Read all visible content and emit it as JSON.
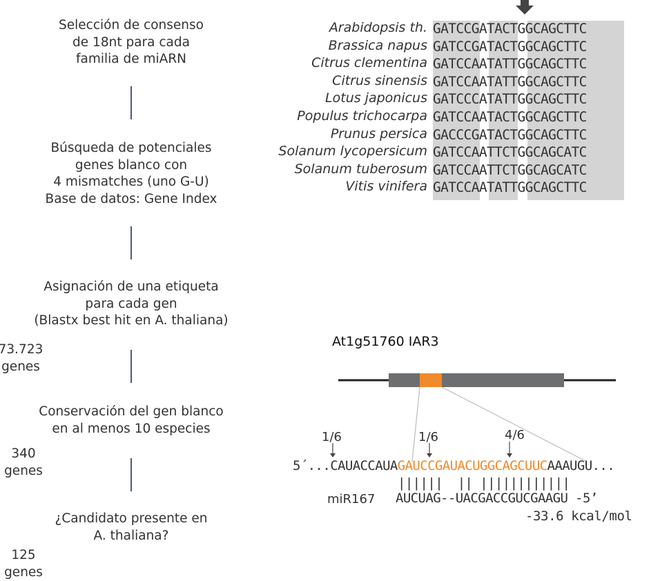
{
  "flow_steps": [
    "Selección de consenso\nde 18nt para cada\nfamilia de miARN",
    "Búsqueda de potenciales\ngenes blanco con\n4 mismatches (uno G-U)\nBase de datos: Gene Index",
    "Asignación de una etiqueta\npara cada gen\n(Blastx best hit en A. thaliana)",
    "Conservación del gen blanco\nen al menos 10 especies",
    "¿Candidato presente en\nA. thaliana?"
  ],
  "counts": [
    {
      "value": "73.723",
      "unit": "genes"
    },
    {
      "value": "340",
      "unit": "genes"
    },
    {
      "value": "125",
      "unit": "genes"
    }
  ],
  "alignment": {
    "species": [
      "Arabidopsis th.",
      "Brassica napus",
      "Citrus clementina",
      "Citrus sinensis",
      "Lotus japonicus",
      "Populus trichocarpa",
      "Prunus persica",
      "Solanum lycopersicum",
      "Solanum tuberosum",
      "Vitis vinifera"
    ],
    "sequences": [
      "GATCCGATACTGGCAGCTTC",
      "GATCCGATACTGGCAGCTTC",
      "GATCCAATATTGGCAGCTTC",
      "GATCCAATATTGGCAGCTTC",
      "GATCCCATATTGGCAGCTTC",
      "GATCCAATACTGGCAGCTTC",
      "GACCCGATACTGGCAGCTTC",
      "GATCCAATTCTGGCAGCATC",
      "GATCCAATTCTGGCAGCATC",
      "GATCCAATATTGGCAGCTTC"
    ],
    "highlight_color": "#d4d4d4"
  },
  "gene": {
    "title": "At1g51760 IAR3",
    "site_color": "#f08a2a",
    "exon_color": "#6d6e70"
  },
  "cleavage": [
    {
      "label": "1/6"
    },
    {
      "label": "1/6"
    },
    {
      "label": "4/6"
    }
  ],
  "duplex": {
    "target_prefix": "5´...CAUACCAUA",
    "target_site": "GAUCCGAUACUGGCAGCUUC",
    "target_suffix": "AAAUGU...",
    "pairing": "||||||  || ||||||||||||",
    "mirna_name": "miR167",
    "mirna_seq": "AUCUAG--UACGACCGUCGAAGU -5’",
    "energy": "-33.6 kcal/mol"
  }
}
